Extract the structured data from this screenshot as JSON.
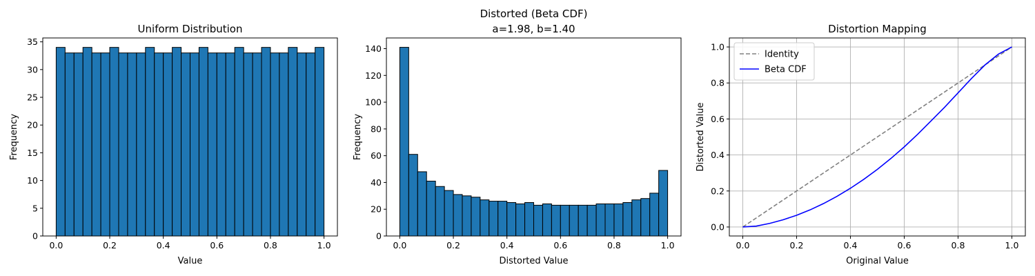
{
  "chart_data": [
    {
      "type": "bar",
      "title": "Uniform Distribution",
      "subtitle": "",
      "xlabel": "Value",
      "ylabel": "Frequency",
      "xlim": [
        -0.05,
        1.05
      ],
      "ylim": [
        0,
        35.7
      ],
      "xticks": [
        0.0,
        0.2,
        0.4,
        0.6,
        0.8,
        1.0
      ],
      "xtick_labels": [
        "0.0",
        "0.2",
        "0.4",
        "0.6",
        "0.8",
        "1.0"
      ],
      "yticks": [
        0,
        5,
        10,
        15,
        20,
        25,
        30,
        35
      ],
      "ytick_labels": [
        "0",
        "5",
        "10",
        "15",
        "20",
        "25",
        "30",
        "35"
      ],
      "bin_range": [
        0,
        1
      ],
      "values": [
        34,
        33,
        33,
        34,
        33,
        33,
        34,
        33,
        33,
        33,
        34,
        33,
        33,
        34,
        33,
        33,
        34,
        33,
        33,
        33,
        34,
        33,
        33,
        34,
        33,
        33,
        34,
        33,
        33,
        34
      ],
      "bar_color": "#1f77b4",
      "edge_color": "#000000",
      "grid": false
    },
    {
      "type": "bar",
      "title": "Distorted (Beta CDF)",
      "subtitle": "a=1.98, b=1.40",
      "xlabel": "Distorted Value",
      "ylabel": "Frequency",
      "xlim": [
        -0.05,
        1.05
      ],
      "ylim": [
        0,
        148
      ],
      "xticks": [
        0.0,
        0.2,
        0.4,
        0.6,
        0.8,
        1.0
      ],
      "xtick_labels": [
        "0.0",
        "0.2",
        "0.4",
        "0.6",
        "0.8",
        "1.0"
      ],
      "yticks": [
        0,
        20,
        40,
        60,
        80,
        100,
        120,
        140
      ],
      "ytick_labels": [
        "0",
        "20",
        "40",
        "60",
        "80",
        "100",
        "120",
        "140"
      ],
      "bin_range": [
        0,
        1
      ],
      "values": [
        141,
        61,
        48,
        41,
        37,
        34,
        31,
        30,
        29,
        27,
        26,
        26,
        25,
        24,
        25,
        23,
        24,
        23,
        23,
        23,
        23,
        23,
        24,
        24,
        24,
        25,
        27,
        28,
        32,
        49
      ],
      "bar_color": "#1f77b4",
      "edge_color": "#000000",
      "grid": false
    },
    {
      "type": "line",
      "title": "Distortion Mapping",
      "subtitle": "",
      "xlabel": "Original Value",
      "ylabel": "Distorted Value",
      "xlim": [
        -0.05,
        1.05
      ],
      "ylim": [
        -0.05,
        1.05
      ],
      "xticks": [
        0.0,
        0.2,
        0.4,
        0.6,
        0.8,
        1.0
      ],
      "xtick_labels": [
        "0.0",
        "0.2",
        "0.4",
        "0.6",
        "0.8",
        "1.0"
      ],
      "yticks": [
        0.0,
        0.2,
        0.4,
        0.6,
        0.8,
        1.0
      ],
      "ytick_labels": [
        "0.0",
        "0.2",
        "0.4",
        "0.6",
        "0.8",
        "1.0"
      ],
      "grid": true,
      "legend_position": "top-left",
      "series": [
        {
          "name": "Identity",
          "style": "dashed",
          "color": "#808080",
          "x": [
            0.0,
            1.0
          ],
          "y": [
            0.0,
            1.0
          ]
        },
        {
          "name": "Beta CDF",
          "style": "solid",
          "color": "#0000ff",
          "x": [
            0.0,
            0.05,
            0.1,
            0.15,
            0.2,
            0.25,
            0.3,
            0.35,
            0.4,
            0.45,
            0.5,
            0.55,
            0.6,
            0.65,
            0.7,
            0.75,
            0.8,
            0.85,
            0.9,
            0.95,
            1.0
          ],
          "y": [
            0.0,
            0.005,
            0.02,
            0.04,
            0.065,
            0.095,
            0.13,
            0.17,
            0.215,
            0.265,
            0.32,
            0.38,
            0.445,
            0.515,
            0.59,
            0.665,
            0.745,
            0.825,
            0.9,
            0.96,
            1.0
          ]
        }
      ]
    }
  ]
}
